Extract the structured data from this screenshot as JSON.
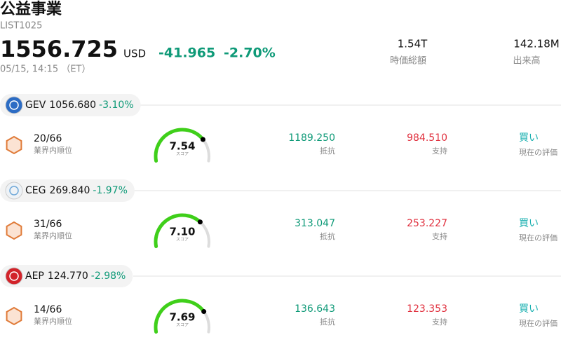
{
  "header": {
    "title": "公益事業",
    "code": "LIST1025",
    "price": "1556.725",
    "currency": "USD",
    "change": "-41.965",
    "change_pct": "-2.70%",
    "timestamp": "05/15, 14:15 （ET）",
    "stats": [
      {
        "value": "1.54T",
        "label": "時価総額"
      },
      {
        "value": "142.18M",
        "label": "出来高"
      }
    ]
  },
  "score_lim": [
    0,
    10
  ],
  "stocks": [
    {
      "ticker": "GEV",
      "price": "1056.680",
      "change": "-3.10%",
      "rank": "20/66",
      "rank_label": "業界内順位",
      "score": {
        "value": 7.54,
        "label": "7.54"
      },
      "score_label": "スコア",
      "resistance": "1189.250",
      "resistance_label": "抵抗",
      "support": "984.510",
      "support_label": "支持",
      "rating": "買い",
      "rating_label": "現在の評価"
    },
    {
      "ticker": "CEG",
      "price": "269.840",
      "change": "-1.97%",
      "rank": "31/66",
      "rank_label": "業界内順位",
      "score": {
        "value": 7.1,
        "label": "7.10"
      },
      "score_label": "スコア",
      "resistance": "313.047",
      "resistance_label": "抵抗",
      "support": "253.227",
      "support_label": "支持",
      "rating": "買い",
      "rating_label": "現在の評価"
    },
    {
      "ticker": "AEP",
      "price": "124.770",
      "change": "-2.98%",
      "rank": "14/66",
      "rank_label": "業界内順位",
      "score": {
        "value": 7.69,
        "label": "7.69"
      },
      "score_label": "スコア",
      "resistance": "136.643",
      "resistance_label": "抵抗",
      "support": "123.353",
      "support_label": "支持",
      "rating": "買い",
      "rating_label": "現在の評価"
    }
  ]
}
